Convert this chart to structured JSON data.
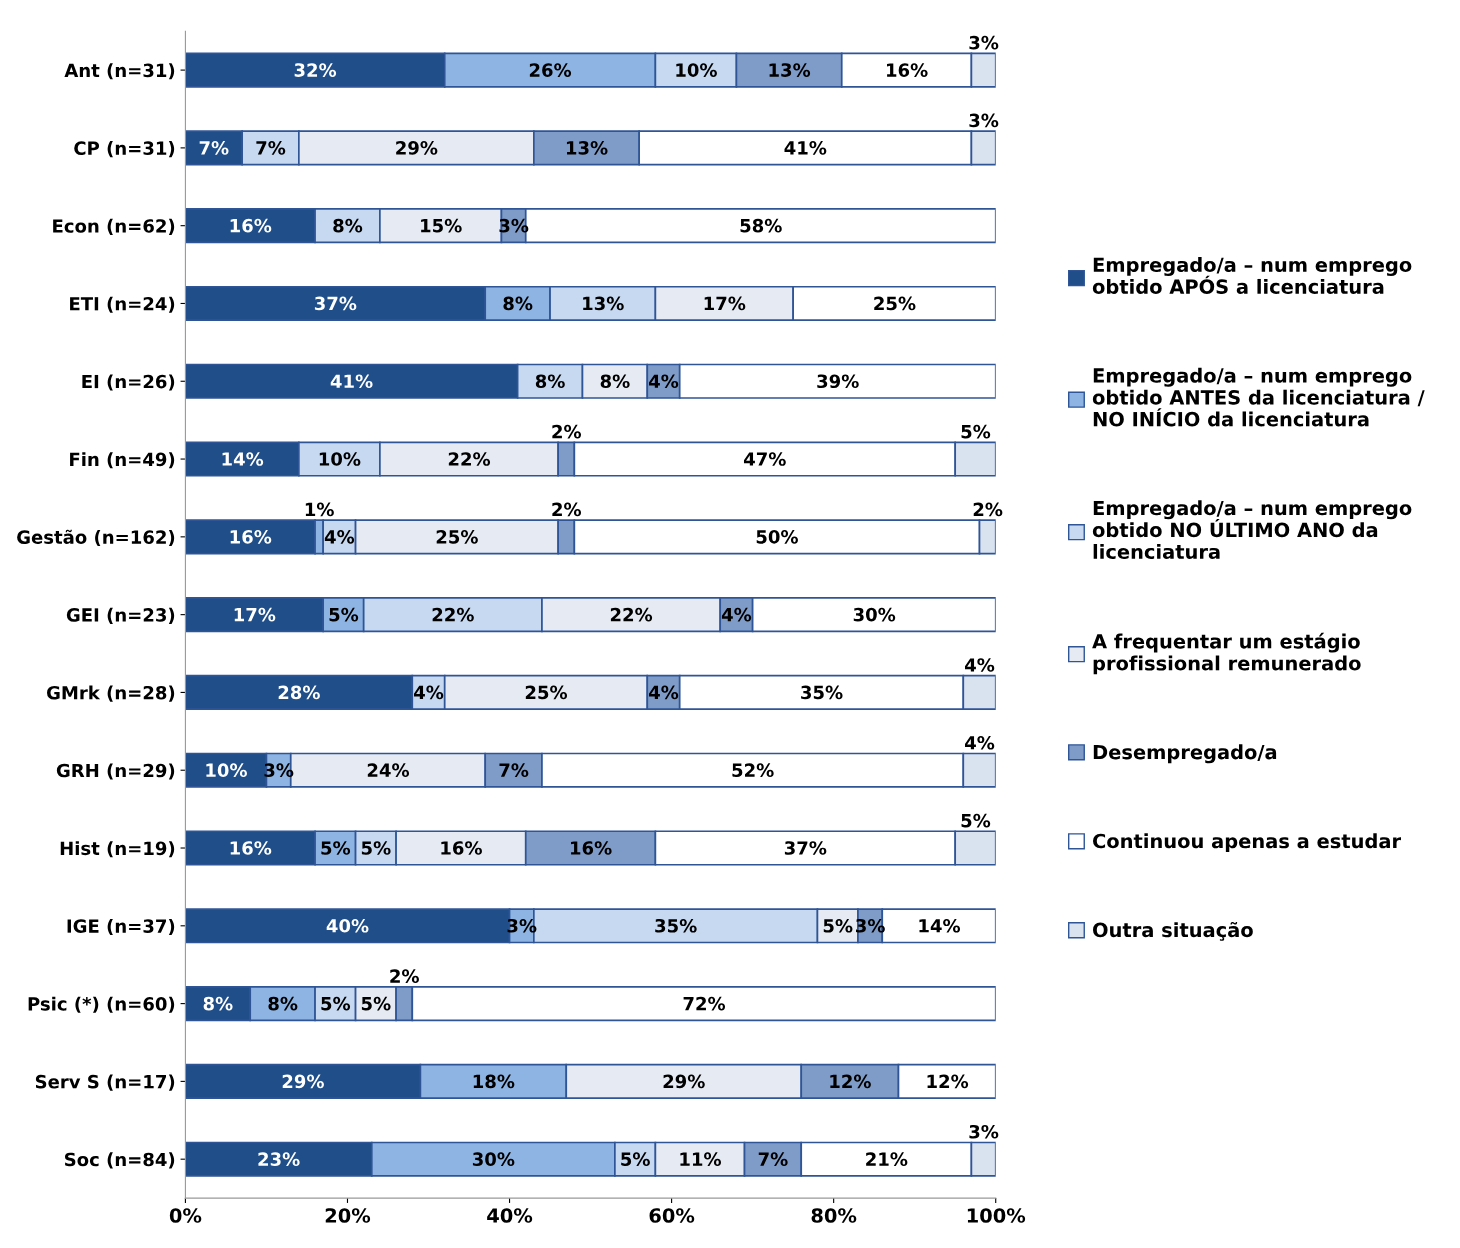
{
  "chart_data": {
    "type": "bar",
    "orientation": "horizontal",
    "stacked": true,
    "categories": [
      "Ant (n=31)",
      "CP (n=31)",
      "Econ (n=62)",
      "ETI (n=24)",
      "EI (n=26)",
      "Fin (n=49)",
      "Gestão (n=162)",
      "GEI (n=23)",
      "GMrk (n=28)",
      "GRH (n=29)",
      "Hist (n=19)",
      "IGE (n=37)",
      "Psic (*) (n=60)",
      "Serv S (n=17)",
      "Soc (n=84)"
    ],
    "xlim": [
      0,
      100
    ],
    "xticks": [
      {
        "value": 0,
        "label": "0%"
      },
      {
        "value": 20,
        "label": "20%"
      },
      {
        "value": 40,
        "label": "40%"
      },
      {
        "value": 60,
        "label": "60%"
      },
      {
        "value": 80,
        "label": "80%"
      },
      {
        "value": 100,
        "label": "100%"
      }
    ],
    "grid": false,
    "legend": "right",
    "series": [
      {
        "name": "Empregado/a – num emprego obtido APÓS a licenciatura",
        "color": "#1f4e89",
        "values": [
          32,
          7,
          16,
          37,
          41,
          14,
          16,
          17,
          28,
          10,
          16,
          40,
          8,
          29,
          23
        ],
        "value_labels": [
          "32%",
          "7%",
          "16%",
          "37%",
          "41%",
          "14%",
          "16%",
          "17%",
          "28%",
          "10%",
          "16%",
          "40%",
          "8%",
          "29%",
          "23%"
        ]
      },
      {
        "name": "Empregado/a – num emprego obtido ANTES da licenciatura / NO INÍCIO da licenciatura",
        "color": "#8db4e2",
        "values": [
          26,
          null,
          null,
          8,
          null,
          null,
          1,
          5,
          null,
          3,
          5,
          3,
          8,
          18,
          30
        ],
        "value_labels": [
          "26%",
          null,
          null,
          "8%",
          null,
          null,
          "1%",
          "5%",
          null,
          "3%",
          "5%",
          "3%",
          "8%",
          "18%",
          "30%"
        ]
      },
      {
        "name": "Empregado/a – num emprego obtido NO ÚLTIMO ANO da licenciatura",
        "color": "#c6d9f1",
        "values": [
          10,
          7,
          8,
          13,
          8,
          10,
          4,
          22,
          4,
          null,
          5,
          35,
          5,
          null,
          5
        ],
        "value_labels": [
          "10%",
          "7%",
          "8%",
          "13%",
          "8%",
          "10%",
          "4%",
          "22%",
          "4%",
          null,
          "5%",
          "35%",
          "5%",
          null,
          "5%"
        ]
      },
      {
        "name": "A frequentar um estágio profissional remunerado",
        "color": "#e6ebf3",
        "values": [
          null,
          29,
          15,
          17,
          8,
          22,
          25,
          22,
          25,
          24,
          16,
          5,
          5,
          29,
          11
        ],
        "value_labels": [
          null,
          "29%",
          "15%",
          "17%",
          "8%",
          "22%",
          "25%",
          "22%",
          "25%",
          "24%",
          "16%",
          "5%",
          "5%",
          "29%",
          "11%"
        ]
      },
      {
        "name": "Desempregado/a",
        "color": "#7f9cc8",
        "values": [
          13,
          13,
          3,
          null,
          4,
          2,
          2,
          4,
          4,
          7,
          16,
          3,
          2,
          12,
          7
        ],
        "value_labels": [
          "13%",
          "13%",
          "3%",
          null,
          "4%",
          "2%",
          "2%",
          "4%",
          "4%",
          "7%",
          "16%",
          "3%",
          "2%",
          "12%",
          "7%"
        ]
      },
      {
        "name": "Continuou apenas a estudar",
        "color": "#ffffff",
        "values": [
          16,
          41,
          58,
          25,
          39,
          47,
          50,
          30,
          35,
          52,
          37,
          14,
          72,
          12,
          21
        ],
        "value_labels": [
          "16%",
          "41%",
          "58%",
          "25%",
          "39%",
          "47%",
          "50%",
          "30%",
          "35%",
          "52%",
          "37%",
          "14%",
          "72%",
          "12%",
          "21%"
        ]
      },
      {
        "name": "Outra situação",
        "color": "#d9e3f0",
        "values": [
          3,
          3,
          null,
          null,
          null,
          5,
          2,
          null,
          4,
          4,
          5,
          null,
          null,
          null,
          3
        ],
        "value_labels": [
          "3%",
          "3%",
          null,
          null,
          null,
          "5%",
          "2%",
          null,
          "4%",
          "4%",
          "5%",
          null,
          null,
          null,
          "3%"
        ]
      }
    ]
  }
}
